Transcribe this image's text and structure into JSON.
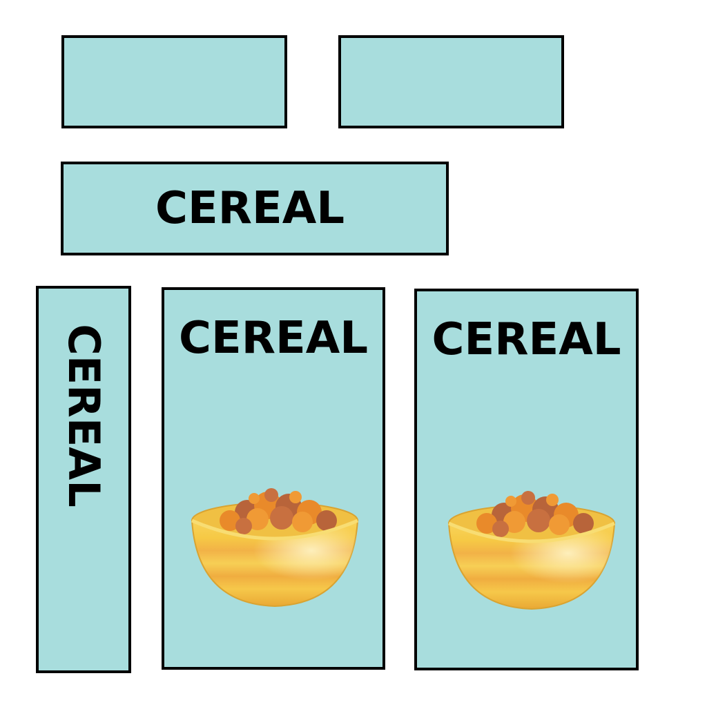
{
  "panels": {
    "top_left": {
      "label": ""
    },
    "top_right": {
      "label": ""
    },
    "lid": {
      "label": "CEREAL"
    },
    "side": {
      "label": "CEREAL"
    },
    "front": {
      "label": "CEREAL",
      "image": "cereal-bowl-icon"
    },
    "back": {
      "label": "CEREAL",
      "image": "cereal-bowl-icon"
    }
  },
  "colors": {
    "panel_fill": "#a8dddd",
    "panel_border": "#000000",
    "text": "#000000",
    "bowl_yellow": "#f6c945",
    "bowl_stripe": "#f2a93b",
    "cereal_orange": "#e98a2a",
    "cereal_brown": "#b8643a"
  }
}
